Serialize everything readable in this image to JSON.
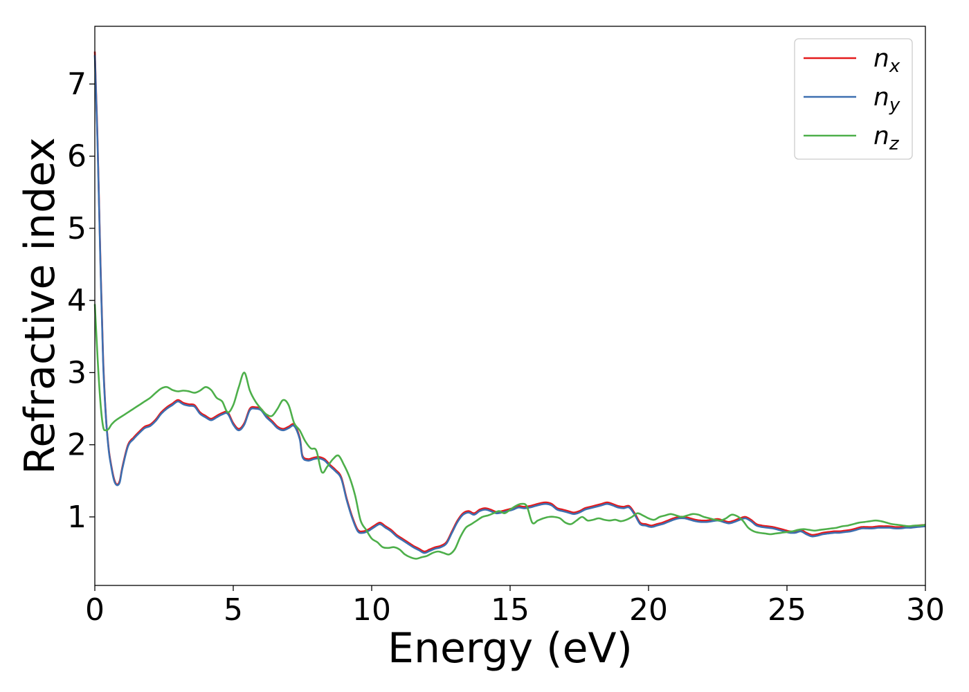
{
  "chart_data": {
    "type": "line",
    "title": "",
    "xlabel": "Energy (eV)",
    "ylabel": "Refractive index",
    "xlim": [
      0,
      30
    ],
    "ylim": [
      0.05,
      7.8
    ],
    "xticks": [
      0,
      5,
      10,
      15,
      20,
      25,
      30
    ],
    "yticks": [
      1,
      2,
      3,
      4,
      5,
      6,
      7
    ],
    "grid": false,
    "legend_position": "top-right",
    "series": [
      {
        "name": "n_x",
        "label_main": "n",
        "label_sub": "x",
        "color": "#e41a1c",
        "x": [
          0,
          0.1,
          0.2,
          0.3,
          0.4,
          0.5,
          0.6,
          0.7,
          0.8,
          0.9,
          1.0,
          1.2,
          1.4,
          1.6,
          1.8,
          2.0,
          2.2,
          2.4,
          2.6,
          2.8,
          3.0,
          3.2,
          3.4,
          3.6,
          3.8,
          4.0,
          4.2,
          4.4,
          4.6,
          4.8,
          5.0,
          5.2,
          5.4,
          5.6,
          5.8,
          6.0,
          6.2,
          6.4,
          6.6,
          6.8,
          7.0,
          7.2,
          7.4,
          7.5,
          7.7,
          7.9,
          8.1,
          8.3,
          8.5,
          8.7,
          8.9,
          9.1,
          9.3,
          9.5,
          9.7,
          9.9,
          10.1,
          10.3,
          10.5,
          10.7,
          10.9,
          11.1,
          11.3,
          11.5,
          11.7,
          11.9,
          12.1,
          12.3,
          12.5,
          12.7,
          12.9,
          13.1,
          13.3,
          13.5,
          13.7,
          13.9,
          14.1,
          14.3,
          14.5,
          14.7,
          14.9,
          15.1,
          15.3,
          15.5,
          15.7,
          15.9,
          16.1,
          16.3,
          16.5,
          16.7,
          16.9,
          17.1,
          17.3,
          17.5,
          17.7,
          17.9,
          18.1,
          18.3,
          18.5,
          18.7,
          18.9,
          19.1,
          19.3,
          19.5,
          19.7,
          19.9,
          20.1,
          20.3,
          20.5,
          20.7,
          20.9,
          21.1,
          21.3,
          21.5,
          21.7,
          21.9,
          22.1,
          22.3,
          22.5,
          22.7,
          22.9,
          23.1,
          23.3,
          23.5,
          23.7,
          23.9,
          24.1,
          24.3,
          24.5,
          24.7,
          24.9,
          25.1,
          25.3,
          25.5,
          25.7,
          25.9,
          26.1,
          26.3,
          26.5,
          26.7,
          26.9,
          27.1,
          27.3,
          27.5,
          27.7,
          27.9,
          28.1,
          28.3,
          28.5,
          28.7,
          28.9,
          29.1,
          29.3,
          29.5,
          29.7,
          30.0
        ],
        "y": [
          7.45,
          6.2,
          4.6,
          3.2,
          2.4,
          1.95,
          1.7,
          1.52,
          1.45,
          1.5,
          1.7,
          2.0,
          2.1,
          2.18,
          2.25,
          2.28,
          2.35,
          2.45,
          2.52,
          2.57,
          2.62,
          2.58,
          2.56,
          2.55,
          2.45,
          2.4,
          2.36,
          2.4,
          2.44,
          2.45,
          2.3,
          2.22,
          2.3,
          2.5,
          2.52,
          2.5,
          2.4,
          2.33,
          2.25,
          2.22,
          2.25,
          2.28,
          2.1,
          1.85,
          1.8,
          1.82,
          1.83,
          1.8,
          1.72,
          1.65,
          1.55,
          1.25,
          1.0,
          0.82,
          0.8,
          0.83,
          0.88,
          0.92,
          0.87,
          0.82,
          0.75,
          0.7,
          0.65,
          0.6,
          0.56,
          0.52,
          0.55,
          0.58,
          0.6,
          0.65,
          0.8,
          0.95,
          1.05,
          1.08,
          1.05,
          1.1,
          1.12,
          1.1,
          1.07,
          1.08,
          1.1,
          1.12,
          1.15,
          1.14,
          1.15,
          1.17,
          1.19,
          1.2,
          1.18,
          1.12,
          1.1,
          1.08,
          1.06,
          1.08,
          1.12,
          1.14,
          1.16,
          1.18,
          1.2,
          1.18,
          1.15,
          1.14,
          1.15,
          1.05,
          0.92,
          0.9,
          0.88,
          0.9,
          0.92,
          0.95,
          0.98,
          1.0,
          1.0,
          0.98,
          0.96,
          0.95,
          0.95,
          0.96,
          0.97,
          0.95,
          0.93,
          0.95,
          0.98,
          1.0,
          0.96,
          0.9,
          0.88,
          0.87,
          0.86,
          0.84,
          0.82,
          0.8,
          0.8,
          0.82,
          0.78,
          0.75,
          0.76,
          0.78,
          0.79,
          0.8,
          0.8,
          0.81,
          0.82,
          0.84,
          0.86,
          0.86,
          0.86,
          0.87,
          0.87,
          0.87,
          0.86,
          0.86,
          0.87,
          0.87,
          0.88,
          0.89
        ]
      },
      {
        "name": "n_y",
        "label_main": "n",
        "label_sub": "y",
        "color": "#3d6fb0",
        "x": [
          0,
          0.1,
          0.2,
          0.3,
          0.4,
          0.5,
          0.6,
          0.7,
          0.8,
          0.9,
          1.0,
          1.2,
          1.4,
          1.6,
          1.8,
          2.0,
          2.2,
          2.4,
          2.6,
          2.8,
          3.0,
          3.2,
          3.4,
          3.6,
          3.8,
          4.0,
          4.2,
          4.4,
          4.6,
          4.8,
          5.0,
          5.2,
          5.4,
          5.6,
          5.8,
          6.0,
          6.2,
          6.4,
          6.6,
          6.8,
          7.0,
          7.2,
          7.4,
          7.5,
          7.7,
          7.9,
          8.1,
          8.3,
          8.5,
          8.7,
          8.9,
          9.1,
          9.3,
          9.5,
          9.7,
          9.9,
          10.1,
          10.3,
          10.5,
          10.7,
          10.9,
          11.1,
          11.3,
          11.5,
          11.7,
          11.9,
          12.1,
          12.3,
          12.5,
          12.7,
          12.9,
          13.1,
          13.3,
          13.5,
          13.7,
          13.9,
          14.1,
          14.3,
          14.5,
          14.7,
          14.9,
          15.1,
          15.3,
          15.5,
          15.7,
          15.9,
          16.1,
          16.3,
          16.5,
          16.7,
          16.9,
          17.1,
          17.3,
          17.5,
          17.7,
          17.9,
          18.1,
          18.3,
          18.5,
          18.7,
          18.9,
          19.1,
          19.3,
          19.5,
          19.7,
          19.9,
          20.1,
          20.3,
          20.5,
          20.7,
          20.9,
          21.1,
          21.3,
          21.5,
          21.7,
          21.9,
          22.1,
          22.3,
          22.5,
          22.7,
          22.9,
          23.1,
          23.3,
          23.5,
          23.7,
          23.9,
          24.1,
          24.3,
          24.5,
          24.7,
          24.9,
          25.1,
          25.3,
          25.5,
          25.7,
          25.9,
          26.1,
          26.3,
          26.5,
          26.7,
          26.9,
          27.1,
          27.3,
          27.5,
          27.7,
          27.9,
          28.1,
          28.3,
          28.5,
          28.7,
          28.9,
          29.1,
          29.3,
          29.5,
          29.7,
          30.0
        ],
        "y": [
          7.4,
          6.15,
          4.55,
          3.15,
          2.38,
          1.93,
          1.68,
          1.5,
          1.44,
          1.48,
          1.68,
          1.98,
          2.08,
          2.16,
          2.23,
          2.26,
          2.33,
          2.43,
          2.5,
          2.55,
          2.6,
          2.56,
          2.54,
          2.53,
          2.43,
          2.38,
          2.34,
          2.38,
          2.42,
          2.43,
          2.28,
          2.2,
          2.28,
          2.48,
          2.5,
          2.48,
          2.38,
          2.31,
          2.23,
          2.2,
          2.23,
          2.26,
          2.08,
          1.83,
          1.78,
          1.8,
          1.81,
          1.78,
          1.7,
          1.63,
          1.53,
          1.23,
          0.98,
          0.8,
          0.78,
          0.81,
          0.86,
          0.9,
          0.85,
          0.8,
          0.73,
          0.68,
          0.63,
          0.58,
          0.54,
          0.5,
          0.53,
          0.56,
          0.58,
          0.63,
          0.78,
          0.93,
          1.03,
          1.06,
          1.03,
          1.08,
          1.1,
          1.08,
          1.05,
          1.06,
          1.08,
          1.1,
          1.13,
          1.12,
          1.13,
          1.15,
          1.17,
          1.18,
          1.16,
          1.1,
          1.08,
          1.06,
          1.04,
          1.06,
          1.1,
          1.12,
          1.14,
          1.16,
          1.18,
          1.16,
          1.13,
          1.12,
          1.13,
          1.03,
          0.9,
          0.88,
          0.86,
          0.88,
          0.9,
          0.93,
          0.96,
          0.98,
          0.98,
          0.96,
          0.94,
          0.93,
          0.93,
          0.94,
          0.95,
          0.93,
          0.91,
          0.93,
          0.96,
          0.98,
          0.94,
          0.88,
          0.86,
          0.85,
          0.84,
          0.82,
          0.8,
          0.78,
          0.78,
          0.8,
          0.76,
          0.73,
          0.74,
          0.76,
          0.77,
          0.78,
          0.78,
          0.79,
          0.8,
          0.82,
          0.84,
          0.84,
          0.84,
          0.85,
          0.85,
          0.85,
          0.84,
          0.84,
          0.85,
          0.85,
          0.86,
          0.87
        ]
      },
      {
        "name": "n_z",
        "label_main": "n",
        "label_sub": "z",
        "color": "#4daf4a",
        "x": [
          0,
          0.1,
          0.2,
          0.3,
          0.4,
          0.5,
          0.6,
          0.7,
          0.8,
          1.0,
          1.2,
          1.4,
          1.6,
          1.8,
          2.0,
          2.2,
          2.4,
          2.6,
          2.8,
          3.0,
          3.2,
          3.4,
          3.6,
          3.8,
          4.0,
          4.2,
          4.4,
          4.6,
          4.8,
          5.0,
          5.2,
          5.4,
          5.6,
          5.8,
          6.0,
          6.2,
          6.4,
          6.6,
          6.8,
          7.0,
          7.2,
          7.4,
          7.6,
          7.8,
          8.0,
          8.2,
          8.4,
          8.6,
          8.8,
          9.0,
          9.2,
          9.4,
          9.6,
          9.8,
          10.0,
          10.2,
          10.4,
          10.6,
          10.8,
          11.0,
          11.2,
          11.4,
          11.6,
          11.8,
          12.0,
          12.2,
          12.4,
          12.6,
          12.8,
          13.0,
          13.2,
          13.4,
          13.6,
          13.8,
          14.0,
          14.2,
          14.4,
          14.6,
          14.8,
          15.0,
          15.2,
          15.4,
          15.6,
          15.8,
          16.0,
          16.2,
          16.4,
          16.6,
          16.8,
          17.0,
          17.2,
          17.4,
          17.6,
          17.8,
          18.0,
          18.2,
          18.4,
          18.6,
          18.8,
          19.0,
          19.2,
          19.4,
          19.6,
          19.8,
          20.0,
          20.2,
          20.4,
          20.6,
          20.8,
          21.0,
          21.2,
          21.4,
          21.6,
          21.8,
          22.0,
          22.2,
          22.4,
          22.6,
          22.8,
          23.0,
          23.2,
          23.4,
          23.6,
          23.8,
          24.0,
          24.2,
          24.4,
          24.6,
          24.8,
          25.0,
          25.2,
          25.4,
          25.6,
          25.8,
          26.0,
          26.2,
          26.4,
          26.6,
          26.8,
          27.0,
          27.2,
          27.4,
          27.6,
          27.8,
          28.0,
          28.2,
          28.4,
          28.6,
          28.8,
          29.0,
          29.2,
          29.4,
          29.6,
          29.8,
          30.0
        ],
        "y": [
          3.95,
          3.2,
          2.6,
          2.25,
          2.2,
          2.22,
          2.28,
          2.32,
          2.35,
          2.4,
          2.45,
          2.5,
          2.55,
          2.6,
          2.65,
          2.72,
          2.78,
          2.8,
          2.76,
          2.74,
          2.75,
          2.74,
          2.72,
          2.75,
          2.8,
          2.76,
          2.65,
          2.6,
          2.45,
          2.55,
          2.8,
          3.0,
          2.75,
          2.6,
          2.5,
          2.42,
          2.4,
          2.5,
          2.62,
          2.55,
          2.3,
          2.2,
          2.05,
          1.95,
          1.92,
          1.62,
          1.7,
          1.8,
          1.85,
          1.72,
          1.55,
          1.3,
          0.95,
          0.82,
          0.7,
          0.65,
          0.58,
          0.57,
          0.58,
          0.55,
          0.48,
          0.44,
          0.42,
          0.44,
          0.46,
          0.5,
          0.52,
          0.5,
          0.48,
          0.55,
          0.72,
          0.85,
          0.9,
          0.95,
          1.0,
          1.02,
          1.05,
          1.08,
          1.05,
          1.1,
          1.15,
          1.18,
          1.15,
          0.92,
          0.95,
          0.98,
          1.0,
          1.0,
          0.98,
          0.92,
          0.9,
          0.95,
          1.0,
          0.95,
          0.96,
          0.98,
          0.96,
          0.95,
          0.96,
          0.94,
          0.96,
          1.0,
          1.05,
          1.02,
          0.98,
          0.96,
          1.0,
          1.02,
          1.04,
          1.02,
          1.0,
          1.02,
          1.04,
          1.03,
          1.0,
          0.98,
          0.96,
          0.95,
          0.98,
          1.03,
          1.01,
          0.95,
          0.85,
          0.8,
          0.78,
          0.77,
          0.76,
          0.77,
          0.78,
          0.79,
          0.8,
          0.82,
          0.83,
          0.82,
          0.81,
          0.82,
          0.83,
          0.84,
          0.85,
          0.87,
          0.88,
          0.9,
          0.92,
          0.93,
          0.94,
          0.95,
          0.94,
          0.92,
          0.9,
          0.89,
          0.88,
          0.87,
          0.88,
          0.88,
          0.89
        ]
      }
    ]
  }
}
